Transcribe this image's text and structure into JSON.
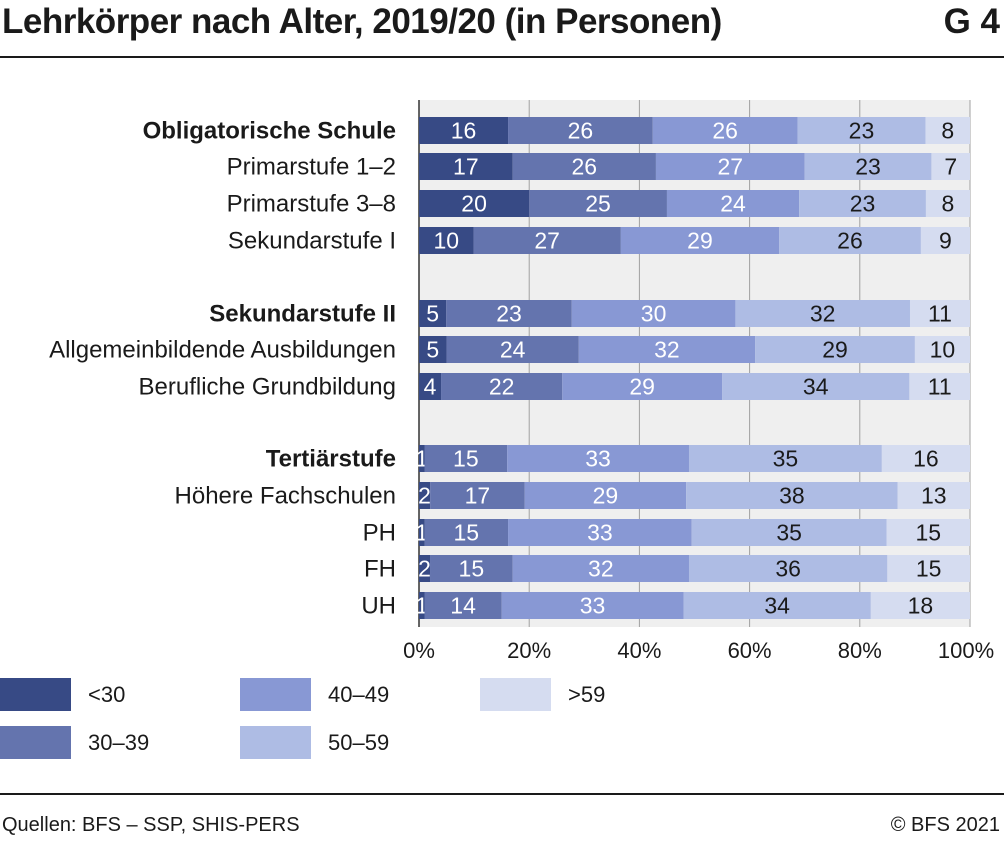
{
  "header": {
    "title": "Lehrkörper nach Alter, 2019/20 (in Personen)",
    "code": "G 4"
  },
  "footer": {
    "source": "Quellen: BFS – SSP, SHIS-PERS",
    "copyright": "© BFS 2021"
  },
  "colors": [
    "#374a85",
    "#6474ae",
    "#8898d4",
    "#aebce4",
    "#d5dcf0"
  ],
  "chart_data": {
    "type": "bar",
    "orientation": "horizontal",
    "stacked": true,
    "categories": [
      "Obligatorische Schule",
      "Primarstufe 1–2",
      "Primarstufe 3–8",
      "Sekundarstufe I",
      "Sekundarstufe II",
      "Allgemeinbildende Ausbildungen",
      "Berufliche Grundbildung",
      "Tertiärstufe",
      "Höhere Fachschulen",
      "PH",
      "FH",
      "UH"
    ],
    "bold_categories": [
      "Obligatorische Schule",
      "Sekundarstufe II",
      "Tertiärstufe"
    ],
    "series": [
      {
        "name": "<30",
        "values": [
          16,
          17,
          20,
          10,
          5,
          5,
          4,
          1,
          2,
          1,
          2,
          1
        ]
      },
      {
        "name": "30–39",
        "values": [
          26,
          26,
          25,
          27,
          23,
          24,
          22,
          15,
          17,
          15,
          15,
          14
        ]
      },
      {
        "name": "40–49",
        "values": [
          26,
          27,
          24,
          29,
          30,
          32,
          29,
          33,
          29,
          33,
          32,
          33
        ]
      },
      {
        "name": "50–59",
        "values": [
          23,
          23,
          23,
          26,
          32,
          29,
          34,
          35,
          38,
          35,
          36,
          34
        ]
      },
      {
        "name": ">59",
        "values": [
          8,
          7,
          8,
          9,
          11,
          10,
          11,
          16,
          13,
          15,
          15,
          18
        ]
      }
    ],
    "x_ticks": [
      "0%",
      "20%",
      "40%",
      "60%",
      "80%",
      "100%"
    ],
    "xlim": [
      0,
      100
    ],
    "grid": true,
    "legend_position": "bottom"
  }
}
